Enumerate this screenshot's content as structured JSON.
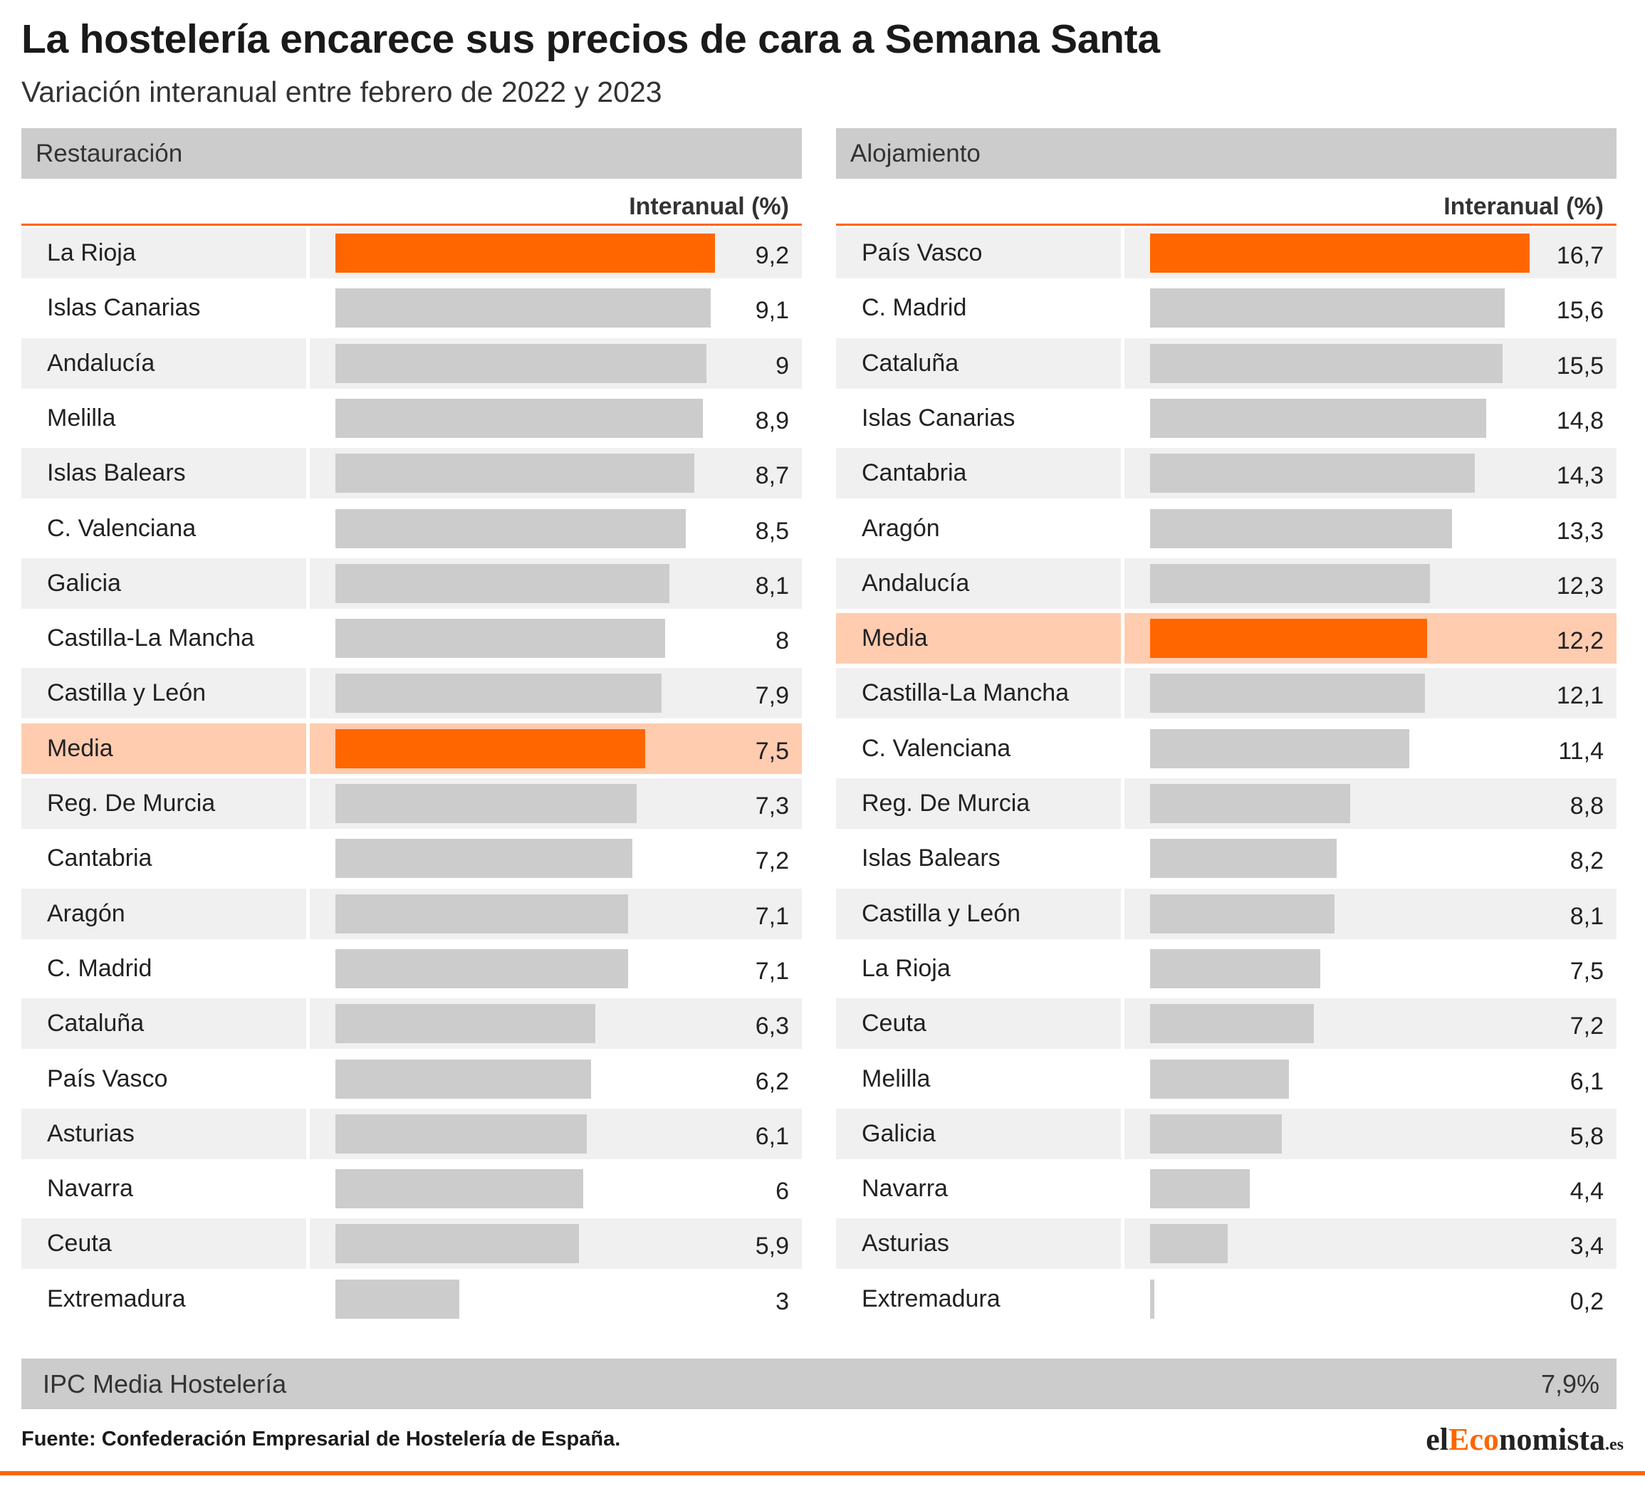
{
  "header": {
    "title": "La hostelería encarece sus precios de cara a Semana Santa",
    "subtitle": "Variación interanual entre febrero de 2022 y 2023"
  },
  "column_header": "Interanual (%)",
  "colors": {
    "highlight_bar": "#ff6600",
    "highlight_row": "#ffccb0",
    "bar": "#cccccc",
    "row_alt": "#f0f0f0",
    "accent_line": "#ff6600"
  },
  "chart_data": [
    {
      "type": "bar",
      "orientation": "horizontal",
      "title": "Restauración",
      "categories": [
        "La Rioja",
        "Islas Canarias",
        "Andalucía",
        "Melilla",
        "Islas Balears",
        "C. Valenciana",
        "Galicia",
        "Castilla-La Mancha",
        "Castilla y León",
        "Media",
        "Reg. De Murcia",
        "Cantabria",
        "Aragón",
        "C. Madrid",
        "Cataluña",
        "País Vasco",
        "Asturias",
        "Navarra",
        "Ceuta",
        "Extremadura"
      ],
      "values": [
        9.2,
        9.1,
        9,
        8.9,
        8.7,
        8.5,
        8.1,
        8,
        7.9,
        7.5,
        7.3,
        7.2,
        7.1,
        7.1,
        6.3,
        6.2,
        6.1,
        6,
        5.9,
        3
      ],
      "value_labels": [
        "9,2",
        "9,1",
        "9",
        "8,9",
        "8,7",
        "8,5",
        "8,1",
        "8",
        "7,9",
        "7,5",
        "7,3",
        "7,2",
        "7,1",
        "7,1",
        "6,3",
        "6,2",
        "6,1",
        "6",
        "5,9",
        "3"
      ],
      "highlight": [
        "La Rioja",
        "Media"
      ],
      "highlight_rows": [
        "Media"
      ],
      "xlim": [
        0,
        9.2
      ]
    },
    {
      "type": "bar",
      "orientation": "horizontal",
      "title": "Alojamiento",
      "categories": [
        "País Vasco",
        "C. Madrid",
        "Cataluña",
        "Islas Canarias",
        "Cantabria",
        "Aragón",
        "Andalucía",
        "Media",
        "Castilla-La Mancha",
        "C. Valenciana",
        "Reg. De Murcia",
        "Islas Balears",
        "Castilla y León",
        "La Rioja",
        "Ceuta",
        "Melilla",
        "Galicia",
        "Navarra",
        "Asturias",
        "Extremadura"
      ],
      "values": [
        16.7,
        15.6,
        15.5,
        14.8,
        14.3,
        13.3,
        12.3,
        12.2,
        12.1,
        11.4,
        8.8,
        8.2,
        8.1,
        7.5,
        7.2,
        6.1,
        5.8,
        4.4,
        3.4,
        0.2
      ],
      "value_labels": [
        "16,7",
        "15,6",
        "15,5",
        "14,8",
        "14,3",
        "13,3",
        "12,3",
        "12,2",
        "12,1",
        "11,4",
        "8,8",
        "8,2",
        "8,1",
        "7,5",
        "7,2",
        "6,1",
        "5,8",
        "4,4",
        "3,4",
        "0,2"
      ],
      "highlight": [
        "País Vasco",
        "Media"
      ],
      "highlight_rows": [
        "Media"
      ],
      "xlim": [
        0,
        16.7
      ]
    }
  ],
  "footer": {
    "ipc_label": "IPC Media Hostelería",
    "ipc_value": "7,9%",
    "source": "Fuente: Confederación Empresarial de Hostelería de España.",
    "logo_prefix": "el",
    "logo_accent": "Eco",
    "logo_rest": "nomista",
    "logo_suffix": ".es"
  }
}
